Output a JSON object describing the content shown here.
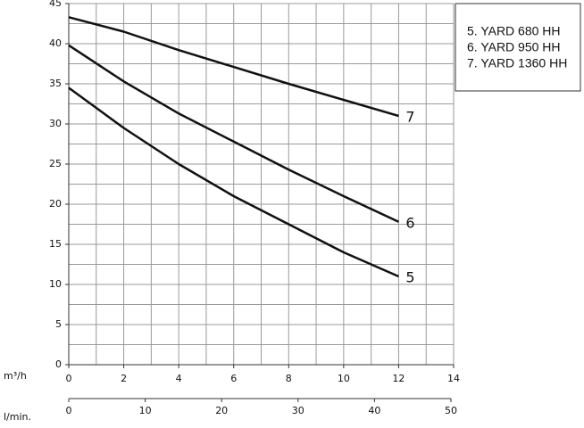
{
  "chart_data": {
    "type": "line",
    "x_label": "m³/h",
    "x2_label": "l/min.",
    "x": [
      0,
      2,
      4,
      6,
      8,
      10,
      12
    ],
    "series": [
      {
        "name": "5",
        "color": "#111111",
        "values": [
          34.5,
          29.5,
          25,
          21,
          17.5,
          14,
          11
        ]
      },
      {
        "name": "6",
        "color": "#111111",
        "values": [
          39.8,
          35.3,
          31.3,
          27.8,
          24.3,
          21,
          17.8
        ]
      },
      {
        "name": "7",
        "color": "#111111",
        "values": [
          43.3,
          41.5,
          39.2,
          37.1,
          35,
          33,
          31
        ]
      }
    ],
    "legend": [
      "5. YARD 680 HH",
      "6. YARD 950 HH",
      "7. YARD 1360 HH"
    ],
    "xlim": [
      0,
      14
    ],
    "xticks": [
      0,
      2,
      4,
      6,
      8,
      10,
      12,
      14
    ],
    "x2lim": [
      0,
      50
    ],
    "x2ticks": [
      0,
      10,
      20,
      30,
      40,
      50
    ],
    "ylim": [
      0,
      45
    ],
    "yticks": [
      0,
      5,
      10,
      15,
      20,
      25,
      30,
      35,
      40,
      45
    ],
    "xgrid": [
      0,
      1,
      2,
      3,
      4,
      5,
      6,
      7,
      8,
      9,
      10,
      11,
      12,
      13,
      14
    ],
    "ygrid": [
      0,
      2.5,
      5,
      7.5,
      10,
      12.5,
      15,
      17.5,
      20,
      22.5,
      25,
      27.5,
      30,
      32.5,
      35,
      37.5,
      40,
      42.5,
      45
    ],
    "grid": true
  }
}
